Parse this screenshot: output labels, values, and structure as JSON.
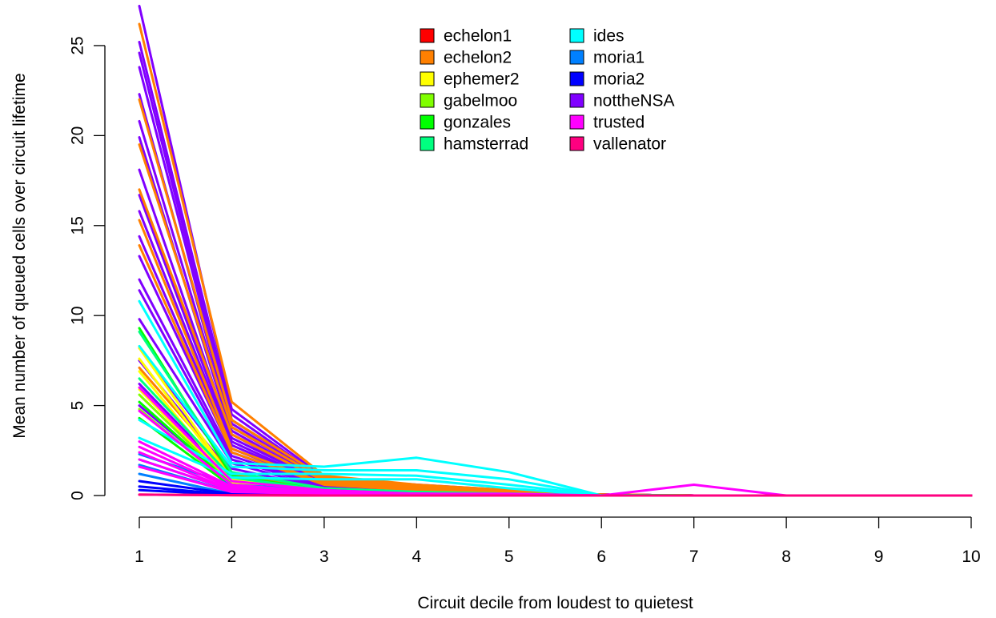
{
  "chart_data": {
    "type": "line",
    "title": "",
    "xlabel": "Circuit decile from loudest to quietest",
    "ylabel": "Mean number of queued cells over circuit lifetime",
    "x": [
      1,
      2,
      3,
      4,
      5,
      6,
      7,
      8,
      9,
      10
    ],
    "xlim": [
      1,
      10
    ],
    "ylim": [
      0,
      27
    ],
    "x_ticks": [
      1,
      2,
      3,
      4,
      5,
      6,
      7,
      8,
      9,
      10
    ],
    "y_ticks": [
      0,
      5,
      10,
      15,
      20,
      25
    ],
    "grid": false,
    "legend_position": "top-center",
    "legend": [
      {
        "name": "echelon1",
        "color": "#ff0000"
      },
      {
        "name": "echelon2",
        "color": "#ff8000"
      },
      {
        "name": "ephemer2",
        "color": "#ffff00"
      },
      {
        "name": "gabelmoo",
        "color": "#80ff00"
      },
      {
        "name": "gonzales",
        "color": "#00ff00"
      },
      {
        "name": "hamsterrad",
        "color": "#00ff80"
      },
      {
        "name": "ides",
        "color": "#00ffff"
      },
      {
        "name": "moria1",
        "color": "#0080ff"
      },
      {
        "name": "moria2",
        "color": "#0000ff"
      },
      {
        "name": "nottheNSA",
        "color": "#8000ff"
      },
      {
        "name": "trusted",
        "color": "#ff00ff"
      },
      {
        "name": "vallenator",
        "color": "#ff0080"
      }
    ],
    "series": [
      {
        "color": "#8000ff",
        "values": [
          27.2,
          4.8,
          1.0,
          0.6,
          0.3,
          0.05,
          0,
          0,
          0,
          0
        ]
      },
      {
        "color": "#8000ff",
        "values": [
          25.2,
          4.5,
          0.9,
          0.5,
          0.3,
          0.05,
          0,
          0,
          0,
          0
        ]
      },
      {
        "color": "#8000ff",
        "values": [
          24.6,
          4.2,
          0.9,
          0.5,
          0.2,
          0.05,
          0,
          0,
          0,
          0
        ]
      },
      {
        "color": "#8000ff",
        "values": [
          23.8,
          4.0,
          0.8,
          0.5,
          0.2,
          0.05,
          0,
          0,
          0,
          0
        ]
      },
      {
        "color": "#8000ff",
        "values": [
          22.3,
          3.8,
          0.8,
          0.4,
          0.2,
          0.05,
          0,
          0,
          0,
          0
        ]
      },
      {
        "color": "#8000ff",
        "values": [
          20.8,
          3.6,
          0.7,
          0.4,
          0.2,
          0.05,
          0,
          0,
          0,
          0
        ]
      },
      {
        "color": "#8000ff",
        "values": [
          19.9,
          3.4,
          0.7,
          0.4,
          0.2,
          0.05,
          0,
          0,
          0,
          0
        ]
      },
      {
        "color": "#8000ff",
        "values": [
          18.1,
          3.2,
          0.7,
          0.3,
          0.2,
          0.05,
          0,
          0,
          0,
          0
        ]
      },
      {
        "color": "#8000ff",
        "values": [
          16.7,
          3.0,
          0.6,
          0.3,
          0.2,
          0.05,
          0,
          0,
          0,
          0
        ]
      },
      {
        "color": "#8000ff",
        "values": [
          15.8,
          2.8,
          0.6,
          0.3,
          0.1,
          0.05,
          0,
          0,
          0,
          0
        ]
      },
      {
        "color": "#8000ff",
        "values": [
          14.4,
          2.6,
          0.6,
          0.3,
          0.1,
          0.05,
          0,
          0,
          0,
          0
        ]
      },
      {
        "color": "#8000ff",
        "values": [
          13.3,
          2.4,
          0.5,
          0.3,
          0.1,
          0.05,
          0,
          0,
          0,
          0
        ]
      },
      {
        "color": "#8000ff",
        "values": [
          12.0,
          2.2,
          0.5,
          0.2,
          0.1,
          0.05,
          0,
          0,
          0,
          0
        ]
      },
      {
        "color": "#8000ff",
        "values": [
          11.4,
          2.0,
          0.5,
          0.2,
          0.1,
          0.05,
          0,
          0,
          0,
          0
        ]
      },
      {
        "color": "#8000ff",
        "values": [
          9.8,
          1.8,
          0.4,
          0.2,
          0.1,
          0.05,
          0,
          0,
          0,
          0
        ]
      },
      {
        "color": "#8000ff",
        "values": [
          8.2,
          1.5,
          0.4,
          0.2,
          0.1,
          0.05,
          0,
          0,
          0,
          0
        ]
      },
      {
        "color": "#8000ff",
        "values": [
          7.5,
          1.2,
          0.4,
          0.2,
          0.1,
          0.05,
          0,
          0,
          0,
          0
        ]
      },
      {
        "color": "#8000ff",
        "values": [
          6.2,
          0.9,
          0.3,
          0.1,
          0.1,
          0.02,
          0,
          0,
          0,
          0
        ]
      },
      {
        "color": "#8000ff",
        "values": [
          5.0,
          0.7,
          0.3,
          0.1,
          0.1,
          0.02,
          0,
          0,
          0,
          0
        ]
      },
      {
        "color": "#ff8000",
        "values": [
          26.2,
          5.2,
          1.1,
          0.6,
          0.3,
          0.05,
          0,
          0,
          0,
          0
        ]
      },
      {
        "color": "#ff8000",
        "values": [
          22.0,
          4.2,
          1.0,
          0.5,
          0.2,
          0.05,
          0,
          0,
          0,
          0
        ]
      },
      {
        "color": "#ff8000",
        "values": [
          19.5,
          3.8,
          0.9,
          0.4,
          0.2,
          0.05,
          0,
          0,
          0,
          0
        ]
      },
      {
        "color": "#ff8000",
        "values": [
          17.0,
          3.4,
          0.8,
          0.4,
          0.2,
          0.05,
          0,
          0,
          0,
          0
        ]
      },
      {
        "color": "#ff8000",
        "values": [
          15.3,
          2.6,
          0.7,
          0.3,
          0.2,
          0.05,
          0,
          0,
          0,
          0
        ]
      },
      {
        "color": "#ff8000",
        "values": [
          13.9,
          2.4,
          0.6,
          0.3,
          0.1,
          0.05,
          0,
          0,
          0,
          0
        ]
      },
      {
        "color": "#ff8000",
        "values": [
          7.1,
          1.2,
          0.4,
          0.2,
          0.1,
          0.02,
          0,
          0,
          0,
          0
        ]
      },
      {
        "color": "#ffff00",
        "values": [
          8.2,
          0.9,
          0.3,
          0.2,
          0.1,
          0.02,
          0,
          0,
          0,
          0
        ]
      },
      {
        "color": "#ffff00",
        "values": [
          7.6,
          0.8,
          0.3,
          0.1,
          0.1,
          0.02,
          0,
          0,
          0,
          0
        ]
      },
      {
        "color": "#ffff00",
        "values": [
          6.9,
          0.7,
          0.2,
          0.1,
          0.1,
          0.02,
          0,
          0,
          0,
          0
        ]
      },
      {
        "color": "#ffff00",
        "values": [
          5.9,
          0.6,
          0.2,
          0.1,
          0.1,
          0.02,
          0,
          0,
          0,
          0
        ]
      },
      {
        "color": "#80ff00",
        "values": [
          5.6,
          0.6,
          0.2,
          0.1,
          0.1,
          0.02,
          0,
          0,
          0,
          0
        ]
      },
      {
        "color": "#80ff00",
        "values": [
          4.8,
          0.5,
          0.2,
          0.1,
          0.1,
          0.02,
          0,
          0,
          0,
          0
        ]
      },
      {
        "color": "#00ff00",
        "values": [
          9.3,
          1.1,
          0.3,
          0.2,
          0.1,
          0.02,
          0,
          0,
          0,
          0
        ]
      },
      {
        "color": "#00ff00",
        "values": [
          5.2,
          0.6,
          0.2,
          0.1,
          0.1,
          0.02,
          0,
          0,
          0,
          0
        ]
      },
      {
        "color": "#00ff00",
        "values": [
          4.3,
          0.5,
          0.2,
          0.1,
          0.1,
          0.02,
          0,
          0,
          0,
          0
        ]
      },
      {
        "color": "#00ff80",
        "values": [
          9.1,
          1.3,
          0.4,
          0.2,
          0.1,
          0.02,
          0,
          0,
          0,
          0
        ]
      },
      {
        "color": "#00ff80",
        "values": [
          6.5,
          1.0,
          0.3,
          0.1,
          0.1,
          0.02,
          0,
          0,
          0,
          0
        ]
      },
      {
        "color": "#00ffff",
        "values": [
          10.8,
          1.8,
          1.6,
          2.1,
          1.3,
          0.0,
          0,
          0,
          0,
          0
        ]
      },
      {
        "color": "#00ffff",
        "values": [
          8.3,
          1.6,
          1.4,
          1.4,
          0.9,
          0.0,
          0,
          0,
          0,
          0
        ]
      },
      {
        "color": "#00ffff",
        "values": [
          4.2,
          1.2,
          1.2,
          1.1,
          0.6,
          0.0,
          0,
          0,
          0,
          0
        ]
      },
      {
        "color": "#00ffff",
        "values": [
          3.2,
          1.0,
          0.9,
          0.9,
          0.4,
          0.0,
          0,
          0,
          0,
          0
        ]
      },
      {
        "color": "#0080ff",
        "values": [
          2.3,
          0.6,
          0.3,
          0.1,
          0.05,
          0.0,
          0,
          0,
          0,
          0
        ]
      },
      {
        "color": "#0080ff",
        "values": [
          2.0,
          0.3,
          0.2,
          0.1,
          0.05,
          0.0,
          0,
          0,
          0,
          0
        ]
      },
      {
        "color": "#0080ff",
        "values": [
          1.7,
          0.2,
          0.1,
          0.05,
          0.05,
          0.0,
          0,
          0,
          0,
          0
        ]
      },
      {
        "color": "#0080ff",
        "values": [
          1.2,
          0.1,
          0.05,
          0.0,
          0.0,
          0.0,
          0,
          0,
          0,
          0
        ]
      },
      {
        "color": "#0000ff",
        "values": [
          0.8,
          0.1,
          0.05,
          0.0,
          0.0,
          0.0,
          0,
          0,
          0,
          0
        ]
      },
      {
        "color": "#0000ff",
        "values": [
          0.5,
          0.05,
          0.0,
          0.0,
          0.0,
          0.0,
          0,
          0,
          0,
          0
        ]
      },
      {
        "color": "#0000ff",
        "values": [
          0.3,
          0.05,
          0.0,
          0.0,
          0.0,
          0.0,
          0,
          0,
          0,
          0
        ]
      },
      {
        "color": "#ff00ff",
        "values": [
          3.0,
          0.5,
          0.2,
          0.1,
          0.05,
          0.0,
          0.6,
          0,
          0,
          0
        ]
      },
      {
        "color": "#ff00ff",
        "values": [
          2.7,
          0.4,
          0.2,
          0.1,
          0.05,
          0.0,
          0.0,
          0,
          0,
          0
        ]
      },
      {
        "color": "#ff00ff",
        "values": [
          2.4,
          0.3,
          0.1,
          0.05,
          0.05,
          0.0,
          0.0,
          0,
          0,
          0
        ]
      },
      {
        "color": "#ff00ff",
        "values": [
          2.0,
          0.3,
          0.1,
          0.05,
          0.0,
          0.0,
          0.0,
          0,
          0,
          0
        ]
      },
      {
        "color": "#ff00ff",
        "values": [
          1.6,
          0.2,
          0.1,
          0.0,
          0.0,
          0.0,
          0.0,
          0,
          0,
          0
        ]
      },
      {
        "color": "#ff00ff",
        "values": [
          6.0,
          0.8,
          0.3,
          0.1,
          0.1,
          0.0,
          0.0,
          0,
          0,
          0
        ]
      },
      {
        "color": "#ff00ff",
        "values": [
          4.7,
          0.6,
          0.2,
          0.1,
          0.05,
          0.0,
          0.0,
          0,
          0,
          0
        ]
      },
      {
        "color": "#ff0000",
        "values": [
          0.05,
          0.02,
          0.0,
          0.0,
          0.0,
          0.0,
          0.0,
          0,
          0,
          0
        ]
      },
      {
        "color": "#ff0080",
        "values": [
          0.05,
          0.02,
          0.0,
          0.0,
          0.0,
          0.0,
          0.0,
          0,
          0,
          0
        ]
      }
    ]
  }
}
